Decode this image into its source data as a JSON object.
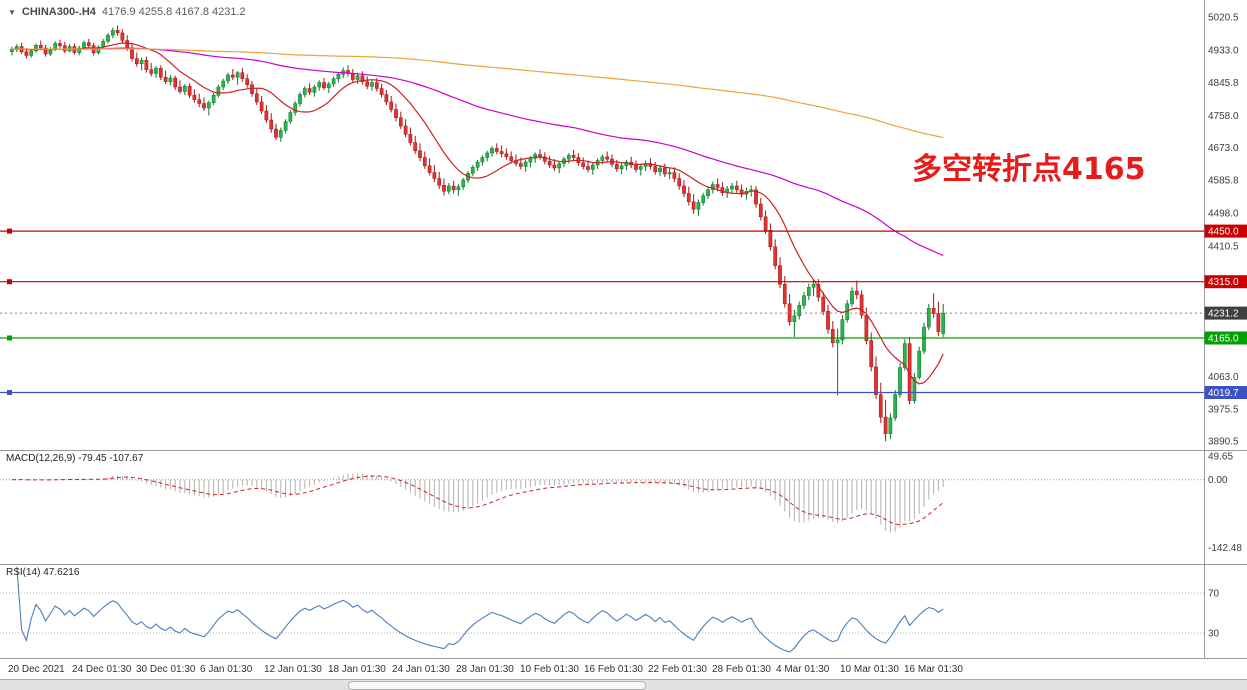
{
  "window": {
    "dropdown_icon": "▼",
    "symbol": "CHINA300-.H4",
    "ohlc": "4176.9 4255.8 4167.8 4231.2"
  },
  "annotation": {
    "text": "多空转折点4165",
    "color": "#e81a1a"
  },
  "macd_label": "MACD(12,26,9) -79.45 -107.67",
  "rsi_label": "RSI(14) 47.6216",
  "chart_data": {
    "type": "candlestick",
    "symbol": "CHINA300-",
    "timeframe": "H4",
    "annotation": "多空转折点4165",
    "last_ohlc": {
      "open": 4176.9,
      "high": 4255.8,
      "low": 4167.8,
      "close": 4231.2
    },
    "price_ticks": [
      5020.5,
      4933.0,
      4845.8,
      4758.0,
      4673.0,
      4585.8,
      4498.0,
      4410.5,
      4063.0,
      3975.5,
      3890.5
    ],
    "time_labels": [
      "20 Dec 2021",
      "24 Dec 01:30",
      "30 Dec 01:30",
      "6 Jan 01:30",
      "12 Jan 01:30",
      "18 Jan 01:30",
      "24 Jan 01:30",
      "28 Jan 01:30",
      "10 Feb 01:30",
      "16 Feb 01:30",
      "22 Feb 01:30",
      "28 Feb 01:30",
      "4 Mar 01:30",
      "10 Mar 01:30",
      "16 Mar 01:30"
    ],
    "hlines": [
      {
        "value": 4450.0,
        "label": "4450.0",
        "color": "#cc0000"
      },
      {
        "value": 4315.0,
        "label": "4315.0",
        "color": "#cc0000"
      },
      {
        "value": 4165.0,
        "label": "4165.0",
        "color": "#00a000"
      },
      {
        "value": 4019.7,
        "label": "4019.7",
        "color": "#3a52c4"
      }
    ],
    "current_price": {
      "value": 4231.2,
      "label": "4231.2",
      "color": "#3f3f3f"
    },
    "colors": {
      "bull": "#28b44a",
      "bull_border": "#0d7a2a",
      "bear": "#e33030",
      "bear_border": "#a01818"
    },
    "moving_averages": [
      {
        "name": "fast",
        "window": 12,
        "color": "#cc2222"
      },
      {
        "name": "medium",
        "window": 75,
        "color": "#cc00cc"
      },
      {
        "name": "slow",
        "window": 250,
        "color": "#eda33c"
      }
    ],
    "macd": {
      "params": [
        12,
        26,
        9
      ],
      "main": -79.45,
      "signal": -107.67,
      "hist_color": "#b0b0b0",
      "signal_color": "#cc2222",
      "ticks": [
        {
          "v": 49.65,
          "label": "49.65"
        },
        {
          "v": 0,
          "label": "0.00"
        },
        {
          "v": -142.48,
          "label": "-142.48"
        }
      ]
    },
    "rsi": {
      "period": 14,
      "value": 47.6216,
      "levels": [
        70,
        30
      ],
      "color": "#4a7ebb"
    },
    "candles": [
      [
        4928,
        4941,
        4918,
        4935
      ],
      [
        4935,
        4948,
        4927,
        4942
      ],
      [
        4942,
        4952,
        4922,
        4928
      ],
      [
        4928,
        4938,
        4910,
        4918
      ],
      [
        4918,
        4936,
        4912,
        4930
      ],
      [
        4930,
        4950,
        4925,
        4945
      ],
      [
        4945,
        4958,
        4932,
        4938
      ],
      [
        4938,
        4946,
        4915,
        4922
      ],
      [
        4922,
        4940,
        4916,
        4934
      ],
      [
        4934,
        4956,
        4930,
        4950
      ],
      [
        4950,
        4960,
        4938,
        4944
      ],
      [
        4944,
        4954,
        4924,
        4930
      ],
      [
        4930,
        4948,
        4926,
        4942
      ],
      [
        4942,
        4950,
        4920,
        4926
      ],
      [
        4926,
        4944,
        4918,
        4938
      ],
      [
        4938,
        4958,
        4934,
        4952
      ],
      [
        4952,
        4962,
        4936,
        4944
      ],
      [
        4944,
        4952,
        4918,
        4925
      ],
      [
        4925,
        4945,
        4920,
        4940
      ],
      [
        4940,
        4962,
        4936,
        4956
      ],
      [
        4956,
        4978,
        4950,
        4972
      ],
      [
        4972,
        4992,
        4964,
        4985
      ],
      [
        4985,
        4998,
        4970,
        4978
      ],
      [
        4978,
        4988,
        4952,
        4958
      ],
      [
        4958,
        4972,
        4930,
        4938
      ],
      [
        4938,
        4950,
        4902,
        4910
      ],
      [
        4910,
        4926,
        4888,
        4896
      ],
      [
        4896,
        4912,
        4878,
        4905
      ],
      [
        4905,
        4915,
        4872,
        4880
      ],
      [
        4880,
        4898,
        4862,
        4870
      ],
      [
        4870,
        4890,
        4858,
        4884
      ],
      [
        4884,
        4892,
        4852,
        4860
      ],
      [
        4860,
        4878,
        4842,
        4848
      ],
      [
        4848,
        4866,
        4838,
        4858
      ],
      [
        4858,
        4864,
        4826,
        4834
      ],
      [
        4834,
        4852,
        4816,
        4822
      ],
      [
        4822,
        4842,
        4812,
        4836
      ],
      [
        4836,
        4844,
        4804,
        4812
      ],
      [
        4812,
        4828,
        4792,
        4800
      ],
      [
        4800,
        4816,
        4780,
        4790
      ],
      [
        4790,
        4806,
        4770,
        4778
      ],
      [
        4778,
        4798,
        4758,
        4792
      ],
      [
        4792,
        4818,
        4786,
        4812
      ],
      [
        4812,
        4840,
        4806,
        4834
      ],
      [
        4834,
        4856,
        4826,
        4850
      ],
      [
        4850,
        4872,
        4842,
        4866
      ],
      [
        4866,
        4882,
        4852,
        4860
      ],
      [
        4860,
        4876,
        4840,
        4872
      ],
      [
        4872,
        4884,
        4848,
        4856
      ],
      [
        4856,
        4868,
        4832,
        4840
      ],
      [
        4840,
        4850,
        4808,
        4816
      ],
      [
        4816,
        4830,
        4786,
        4794
      ],
      [
        4794,
        4810,
        4762,
        4770
      ],
      [
        4770,
        4786,
        4738,
        4746
      ],
      [
        4746,
        4764,
        4712,
        4722
      ],
      [
        4722,
        4736,
        4692,
        4700
      ],
      [
        4700,
        4726,
        4688,
        4718
      ],
      [
        4718,
        4748,
        4710,
        4742
      ],
      [
        4742,
        4772,
        4736,
        4766
      ],
      [
        4766,
        4796,
        4758,
        4790
      ],
      [
        4790,
        4820,
        4782,
        4814
      ],
      [
        4814,
        4836,
        4806,
        4830
      ],
      [
        4830,
        4844,
        4812,
        4820
      ],
      [
        4820,
        4840,
        4808,
        4834
      ],
      [
        4834,
        4852,
        4824,
        4846
      ],
      [
        4846,
        4858,
        4826,
        4832
      ],
      [
        4832,
        4848,
        4818,
        4842
      ],
      [
        4842,
        4862,
        4834,
        4856
      ],
      [
        4856,
        4874,
        4846,
        4868
      ],
      [
        4868,
        4886,
        4858,
        4878
      ],
      [
        4878,
        4892,
        4862,
        4870
      ],
      [
        4870,
        4882,
        4846,
        4854
      ],
      [
        4854,
        4872,
        4842,
        4864
      ],
      [
        4864,
        4876,
        4840,
        4848
      ],
      [
        4848,
        4862,
        4828,
        4836
      ],
      [
        4836,
        4854,
        4824,
        4846
      ],
      [
        4846,
        4858,
        4822,
        4830
      ],
      [
        4830,
        4842,
        4806,
        4814
      ],
      [
        4814,
        4826,
        4786,
        4794
      ],
      [
        4794,
        4810,
        4766,
        4774
      ],
      [
        4774,
        4790,
        4742,
        4752
      ],
      [
        4752,
        4768,
        4722,
        4730
      ],
      [
        4730,
        4748,
        4700,
        4708
      ],
      [
        4708,
        4726,
        4678,
        4686
      ],
      [
        4686,
        4704,
        4656,
        4664
      ],
      [
        4664,
        4684,
        4636,
        4646
      ],
      [
        4646,
        4662,
        4616,
        4624
      ],
      [
        4624,
        4644,
        4598,
        4606
      ],
      [
        4606,
        4626,
        4580,
        4590
      ],
      [
        4590,
        4608,
        4562,
        4572
      ],
      [
        4572,
        4590,
        4545,
        4556
      ],
      [
        4556,
        4578,
        4548,
        4570
      ],
      [
        4570,
        4584,
        4550,
        4560
      ],
      [
        4560,
        4576,
        4544,
        4568
      ],
      [
        4568,
        4592,
        4560,
        4586
      ],
      [
        4586,
        4610,
        4578,
        4604
      ],
      [
        4604,
        4626,
        4596,
        4620
      ],
      [
        4620,
        4640,
        4610,
        4634
      ],
      [
        4634,
        4652,
        4624,
        4646
      ],
      [
        4646,
        4664,
        4636,
        4658
      ],
      [
        4658,
        4676,
        4648,
        4670
      ],
      [
        4670,
        4684,
        4654,
        4662
      ],
      [
        4662,
        4678,
        4646,
        4656
      ],
      [
        4656,
        4670,
        4640,
        4648
      ],
      [
        4648,
        4662,
        4630,
        4638
      ],
      [
        4638,
        4654,
        4622,
        4630
      ],
      [
        4630,
        4646,
        4614,
        4622
      ],
      [
        4622,
        4640,
        4608,
        4634
      ],
      [
        4634,
        4650,
        4620,
        4644
      ],
      [
        4644,
        4660,
        4632,
        4654
      ],
      [
        4654,
        4668,
        4640,
        4648
      ],
      [
        4648,
        4660,
        4628,
        4636
      ],
      [
        4636,
        4650,
        4618,
        4626
      ],
      [
        4626,
        4642,
        4610,
        4618
      ],
      [
        4618,
        4636,
        4604,
        4630
      ],
      [
        4630,
        4648,
        4620,
        4642
      ],
      [
        4642,
        4658,
        4630,
        4652
      ],
      [
        4652,
        4666,
        4638,
        4646
      ],
      [
        4646,
        4658,
        4624,
        4632
      ],
      [
        4632,
        4646,
        4614,
        4622
      ],
      [
        4622,
        4638,
        4606,
        4614
      ],
      [
        4614,
        4632,
        4600,
        4626
      ],
      [
        4626,
        4644,
        4616,
        4638
      ],
      [
        4638,
        4654,
        4628,
        4648
      ],
      [
        4648,
        4662,
        4634,
        4642
      ],
      [
        4642,
        4654,
        4620,
        4628
      ],
      [
        4628,
        4640,
        4608,
        4616
      ],
      [
        4616,
        4632,
        4602,
        4624
      ],
      [
        4624,
        4640,
        4612,
        4634
      ],
      [
        4634,
        4648,
        4618,
        4626
      ],
      [
        4626,
        4638,
        4606,
        4614
      ],
      [
        4614,
        4630,
        4598,
        4622
      ],
      [
        4622,
        4638,
        4610,
        4630
      ],
      [
        4630,
        4644,
        4614,
        4622
      ],
      [
        4622,
        4634,
        4600,
        4608
      ],
      [
        4608,
        4626,
        4596,
        4618
      ],
      [
        4618,
        4630,
        4594,
        4602
      ],
      [
        4602,
        4618,
        4588,
        4606
      ],
      [
        4606,
        4620,
        4580,
        4590
      ],
      [
        4590,
        4604,
        4560,
        4570
      ],
      [
        4570,
        4586,
        4540,
        4550
      ],
      [
        4550,
        4568,
        4518,
        4528
      ],
      [
        4528,
        4548,
        4496,
        4508
      ],
      [
        4508,
        4534,
        4490,
        4526
      ],
      [
        4526,
        4552,
        4518,
        4544
      ],
      [
        4544,
        4568,
        4536,
        4560
      ],
      [
        4560,
        4582,
        4550,
        4574
      ],
      [
        4574,
        4590,
        4556,
        4566
      ],
      [
        4566,
        4580,
        4544,
        4552
      ],
      [
        4552,
        4570,
        4538,
        4562
      ],
      [
        4562,
        4578,
        4548,
        4570
      ],
      [
        4570,
        4584,
        4552,
        4560
      ],
      [
        4560,
        4574,
        4540,
        4548
      ],
      [
        4548,
        4566,
        4534,
        4556
      ],
      [
        4556,
        4572,
        4542,
        4560
      ],
      [
        4560,
        4570,
        4512,
        4522
      ],
      [
        4522,
        4538,
        4478,
        4488
      ],
      [
        4488,
        4505,
        4442,
        4452
      ],
      [
        4452,
        4470,
        4398,
        4408
      ],
      [
        4408,
        4428,
        4348,
        4358
      ],
      [
        4358,
        4380,
        4298,
        4308
      ],
      [
        4308,
        4330,
        4246,
        4256
      ],
      [
        4256,
        4282,
        4198,
        4208
      ],
      [
        4208,
        4240,
        4168,
        4224
      ],
      [
        4224,
        4262,
        4214,
        4252
      ],
      [
        4252,
        4288,
        4242,
        4278
      ],
      [
        4278,
        4310,
        4266,
        4300
      ],
      [
        4300,
        4320,
        4276,
        4308
      ],
      [
        4308,
        4322,
        4262,
        4274
      ],
      [
        4274,
        4288,
        4226,
        4236
      ],
      [
        4236,
        4254,
        4176,
        4188
      ],
      [
        4188,
        4210,
        4140,
        4152
      ],
      [
        4152,
        4190,
        4012,
        4160
      ],
      [
        4160,
        4226,
        4148,
        4214
      ],
      [
        4214,
        4266,
        4206,
        4256
      ],
      [
        4256,
        4300,
        4248,
        4290
      ],
      [
        4290,
        4318,
        4268,
        4280
      ],
      [
        4280,
        4292,
        4216,
        4226
      ],
      [
        4226,
        4246,
        4148,
        4158
      ],
      [
        4158,
        4180,
        4076,
        4088
      ],
      [
        4088,
        4116,
        4002,
        4014
      ],
      [
        4014,
        4046,
        3938,
        3954
      ],
      [
        3954,
        4000,
        3890,
        3910
      ],
      [
        3910,
        3964,
        3896,
        3952
      ],
      [
        3952,
        4026,
        3944,
        4014
      ],
      [
        4014,
        4098,
        4006,
        4086
      ],
      [
        4086,
        4162,
        4078,
        4150
      ],
      [
        4150,
        4168,
        3988,
        3998
      ],
      [
        3998,
        4072,
        3990,
        4060
      ],
      [
        4060,
        4142,
        4054,
        4130
      ],
      [
        4130,
        4206,
        4122,
        4194
      ],
      [
        4194,
        4256,
        4186,
        4244
      ],
      [
        4244,
        4284,
        4218,
        4230
      ],
      [
        4230,
        4262,
        4170,
        4182
      ],
      [
        4176.9,
        4255.8,
        4167.8,
        4231.2
      ]
    ]
  }
}
